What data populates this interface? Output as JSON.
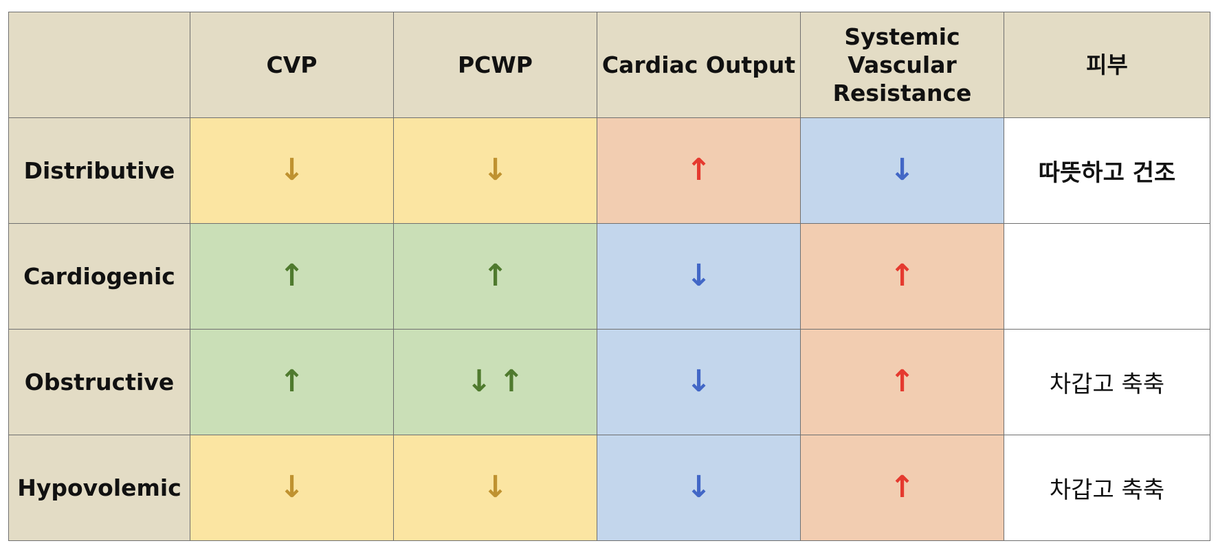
{
  "colors": {
    "header_bg": "#e3dcc5",
    "yellow": "#fbe5a2",
    "green": "#cadfb7",
    "peach": "#f2cdb1",
    "blue": "#c3d6ec",
    "white": "#ffffff",
    "arrow_gold": "#bf9230",
    "arrow_red": "#e53a2f",
    "arrow_blue": "#4267c6",
    "arrow_green": "#4f7a2e"
  },
  "table": {
    "corner": "",
    "headers": {
      "cvp": "CVP",
      "pcwp": "PCWP",
      "cardiac_output": "Cardiac Output",
      "svr_line1": "Systemic",
      "svr_line2": "Vascular",
      "svr_line3": "Resistance",
      "skin": "피부"
    },
    "rows": [
      {
        "label": "Distributive",
        "cvp": {
          "arrows": [
            "↓"
          ],
          "color": "arrow_gold",
          "bg": "yellow"
        },
        "pcwp": {
          "arrows": [
            "↓"
          ],
          "color": "arrow_gold",
          "bg": "yellow"
        },
        "cardiac_output": {
          "arrows": [
            "↑"
          ],
          "color": "arrow_red",
          "bg": "peach"
        },
        "svr": {
          "arrows": [
            "↓"
          ],
          "color": "arrow_blue",
          "bg": "blue"
        },
        "skin": "따뜻하고 건조"
      },
      {
        "label": "Cardiogenic",
        "cvp": {
          "arrows": [
            "↑"
          ],
          "color": "arrow_green",
          "bg": "green"
        },
        "pcwp": {
          "arrows": [
            "↑"
          ],
          "color": "arrow_green",
          "bg": "green"
        },
        "cardiac_output": {
          "arrows": [
            "↓"
          ],
          "color": "arrow_blue",
          "bg": "blue"
        },
        "svr": {
          "arrows": [
            "↑"
          ],
          "color": "arrow_red",
          "bg": "peach"
        },
        "skin": ""
      },
      {
        "label": "Obstructive",
        "cvp": {
          "arrows": [
            "↑"
          ],
          "color": "arrow_green",
          "bg": "green"
        },
        "pcwp": {
          "arrows": [
            "↓",
            "↑"
          ],
          "color": "arrow_green",
          "bg": "green"
        },
        "cardiac_output": {
          "arrows": [
            "↓"
          ],
          "color": "arrow_blue",
          "bg": "blue"
        },
        "svr": {
          "arrows": [
            "↑"
          ],
          "color": "arrow_red",
          "bg": "peach"
        },
        "skin": "차갑고 축축"
      },
      {
        "label": "Hypovolemic",
        "cvp": {
          "arrows": [
            "↓"
          ],
          "color": "arrow_gold",
          "bg": "yellow"
        },
        "pcwp": {
          "arrows": [
            "↓"
          ],
          "color": "arrow_gold",
          "bg": "yellow"
        },
        "cardiac_output": {
          "arrows": [
            "↓"
          ],
          "color": "arrow_blue",
          "bg": "blue"
        },
        "svr": {
          "arrows": [
            "↑"
          ],
          "color": "arrow_red",
          "bg": "peach"
        },
        "skin": "차갑고 축축"
      }
    ]
  }
}
